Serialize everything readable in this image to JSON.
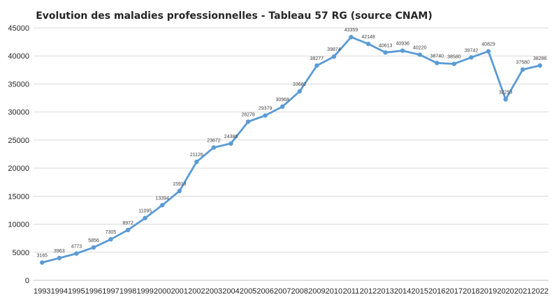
{
  "chart_data": {
    "type": "line",
    "title": "Evolution des maladies professionnelles - Tableau 57 RG (source CNAM)",
    "xlabel": "",
    "ylabel": "",
    "ylim": [
      0,
      45000
    ],
    "yticks": [
      0,
      5000,
      10000,
      15000,
      20000,
      25000,
      30000,
      35000,
      40000,
      45000
    ],
    "grid": true,
    "legend": "none",
    "series_color": "#5b9bd5",
    "categories": [
      "1993",
      "1994",
      "1995",
      "1996",
      "1997",
      "1998",
      "1999",
      "2000",
      "2001",
      "2002",
      "2003",
      "2004",
      "2005",
      "2006",
      "2007",
      "2008",
      "2009",
      "2010",
      "2011",
      "2012",
      "2013",
      "2014",
      "2015",
      "2016",
      "2017",
      "2018",
      "2019",
      "2020",
      "2021",
      "2022"
    ],
    "values": [
      3165,
      3963,
      4773,
      5856,
      7305,
      8972,
      11095,
      13394,
      15913,
      21126,
      23672,
      24386,
      28278,
      29379,
      30968,
      33682,
      38277,
      39874,
      43359,
      42148,
      40613,
      40936,
      40220,
      38740,
      38580,
      39742,
      40829,
      32253,
      37580,
      38286
    ]
  }
}
